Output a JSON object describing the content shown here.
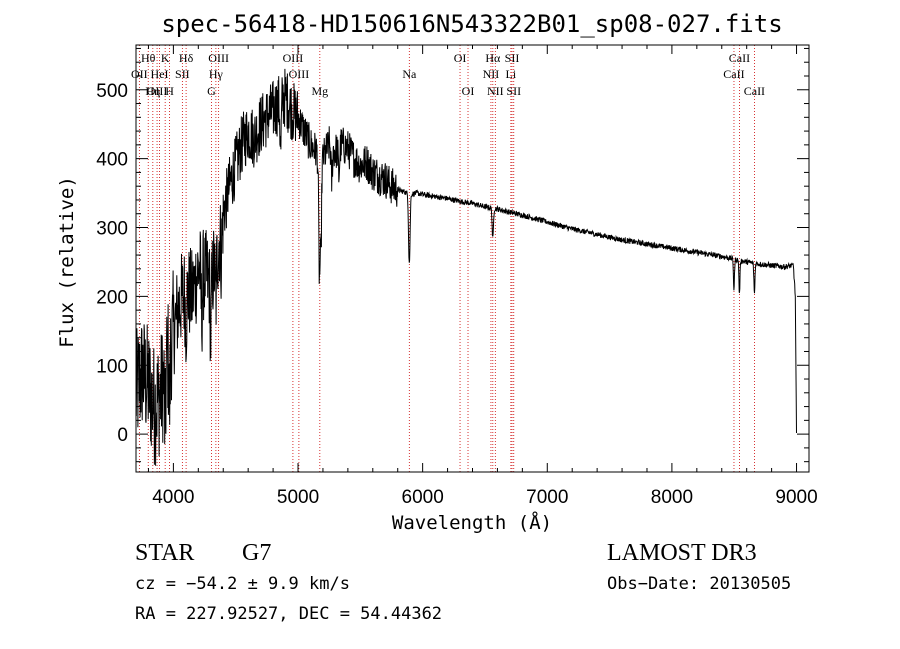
{
  "chart_data": {
    "type": "line",
    "title": "spec-56418-HD150616N543322B01_sp08-027.fits",
    "xlabel": "Wavelength (Å)",
    "ylabel": "Flux (relative)",
    "xlim": [
      3700,
      9100
    ],
    "ylim": [
      -55,
      565
    ],
    "x_ticks": [
      4000,
      5000,
      6000,
      7000,
      8000,
      9000
    ],
    "y_ticks": [
      0,
      100,
      200,
      300,
      400,
      500
    ],
    "grid": false,
    "series": [
      {
        "anchors": [
          [
            3700,
            60
          ],
          [
            3750,
            90
          ],
          [
            3800,
            70
          ],
          [
            3850,
            40
          ],
          [
            3900,
            60
          ],
          [
            3950,
            110
          ],
          [
            4000,
            150
          ],
          [
            4050,
            190
          ],
          [
            4100,
            210
          ],
          [
            4150,
            200
          ],
          [
            4200,
            240
          ],
          [
            4250,
            230
          ],
          [
            4300,
            220
          ],
          [
            4350,
            260
          ],
          [
            4400,
            320
          ],
          [
            4450,
            360
          ],
          [
            4500,
            390
          ],
          [
            4550,
            420
          ],
          [
            4600,
            440
          ],
          [
            4650,
            430
          ],
          [
            4700,
            450
          ],
          [
            4750,
            460
          ],
          [
            4800,
            470
          ],
          [
            4850,
            480
          ],
          [
            4900,
            490
          ],
          [
            4950,
            470
          ],
          [
            5000,
            460
          ],
          [
            5050,
            440
          ],
          [
            5100,
            420
          ],
          [
            5150,
            410
          ],
          [
            5200,
            400
          ],
          [
            5250,
            420
          ],
          [
            5300,
            410
          ],
          [
            5350,
            420
          ],
          [
            5400,
            415
          ],
          [
            5450,
            400
          ],
          [
            5500,
            390
          ],
          [
            5550,
            395
          ],
          [
            5600,
            380
          ],
          [
            5650,
            375
          ],
          [
            5700,
            370
          ],
          [
            5750,
            360
          ],
          [
            5800,
            355
          ],
          [
            5850,
            352
          ],
          [
            5900,
            348
          ],
          [
            5950,
            350
          ],
          [
            6000,
            348
          ],
          [
            6100,
            345
          ],
          [
            6200,
            342
          ],
          [
            6300,
            338
          ],
          [
            6400,
            335
          ],
          [
            6500,
            330
          ],
          [
            6600,
            327
          ],
          [
            6700,
            322
          ],
          [
            6800,
            318
          ],
          [
            6900,
            313
          ],
          [
            7000,
            308
          ],
          [
            7100,
            303
          ],
          [
            7200,
            298
          ],
          [
            7300,
            294
          ],
          [
            7400,
            290
          ],
          [
            7500,
            286
          ],
          [
            7600,
            282
          ],
          [
            7700,
            279
          ],
          [
            7800,
            276
          ],
          [
            7900,
            273
          ],
          [
            8000,
            270
          ],
          [
            8100,
            267
          ],
          [
            8200,
            264
          ],
          [
            8300,
            261
          ],
          [
            8400,
            258
          ],
          [
            8500,
            254
          ],
          [
            8600,
            250
          ],
          [
            8700,
            247
          ],
          [
            8800,
            245
          ],
          [
            8900,
            243
          ],
          [
            8975,
            245
          ],
          [
            8990,
            200
          ],
          [
            9000,
            0
          ]
        ],
        "absorption_lines": [
          [
            3934,
            90
          ],
          [
            3969,
            80
          ],
          [
            4101,
            50
          ],
          [
            4227,
            60
          ],
          [
            4300,
            80
          ],
          [
            4340,
            60
          ],
          [
            4384,
            40
          ],
          [
            4861,
            70
          ],
          [
            5167,
            60
          ],
          [
            5173,
            140
          ],
          [
            5184,
            130
          ],
          [
            5270,
            50
          ],
          [
            5328,
            40
          ],
          [
            5890,
            60
          ],
          [
            5896,
            60
          ],
          [
            6563,
            45
          ],
          [
            8498,
            45
          ],
          [
            8542,
            50
          ],
          [
            8662,
            45
          ]
        ]
      }
    ],
    "line_markers": [
      {
        "label": "Hθ",
        "wavelength": 3798,
        "row": 1
      },
      {
        "label": "K",
        "wavelength": 3934,
        "row": 1
      },
      {
        "label": "Hδ",
        "wavelength": 4102,
        "row": 1
      },
      {
        "label": "OIII",
        "wavelength": 4363,
        "row": 1
      },
      {
        "label": "OIII",
        "wavelength": 4959,
        "row": 1
      },
      {
        "label": "OI",
        "wavelength": 6300,
        "row": 1
      },
      {
        "label": "Hα",
        "wavelength": 6563,
        "row": 1
      },
      {
        "label": "SII",
        "wavelength": 6717,
        "row": 1
      },
      {
        "label": "CaII",
        "wavelength": 8542,
        "row": 1
      },
      {
        "label": "OII",
        "wavelength": 3727,
        "row": 2
      },
      {
        "label": "HeI",
        "wavelength": 3889,
        "row": 2
      },
      {
        "label": "SII",
        "wavelength": 4072,
        "row": 2
      },
      {
        "label": "Hγ",
        "wavelength": 4341,
        "row": 2
      },
      {
        "label": "OIII",
        "wavelength": 5007,
        "row": 2
      },
      {
        "label": "Na",
        "wavelength": 5893,
        "row": 2
      },
      {
        "label": "NII",
        "wavelength": 6548,
        "row": 2
      },
      {
        "label": "Li",
        "wavelength": 6708,
        "row": 2
      },
      {
        "label": "CaII",
        "wavelength": 8498,
        "row": 2
      },
      {
        "label": "OIII",
        "wavelength": 3869,
        "row": 3
      },
      {
        "label": "Hη",
        "wavelength": 3835,
        "row": 3
      },
      {
        "label": "H",
        "wavelength": 3969,
        "row": 3
      },
      {
        "label": "G",
        "wavelength": 4305,
        "row": 3
      },
      {
        "label": "Mg",
        "wavelength": 5175,
        "row": 3
      },
      {
        "label": "OI",
        "wavelength": 6364,
        "row": 3
      },
      {
        "label": "NII",
        "wavelength": 6583,
        "row": 3
      },
      {
        "label": "SII",
        "wavelength": 6731,
        "row": 3
      },
      {
        "label": "CaII",
        "wavelength": 8662,
        "row": 3
      }
    ]
  },
  "info": {
    "object_class": "STAR",
    "subclass": "G7",
    "survey": "LAMOST DR3",
    "redshift": "cz = −54.2 ± 9.9 km/s",
    "obs_date": "Obs−Date: 20130505",
    "coords": "RA = 227.92527, DEC =  54.44362"
  },
  "colors": {
    "axes": "#000000",
    "spectrum": "#000000",
    "markers": "#cc0000"
  }
}
